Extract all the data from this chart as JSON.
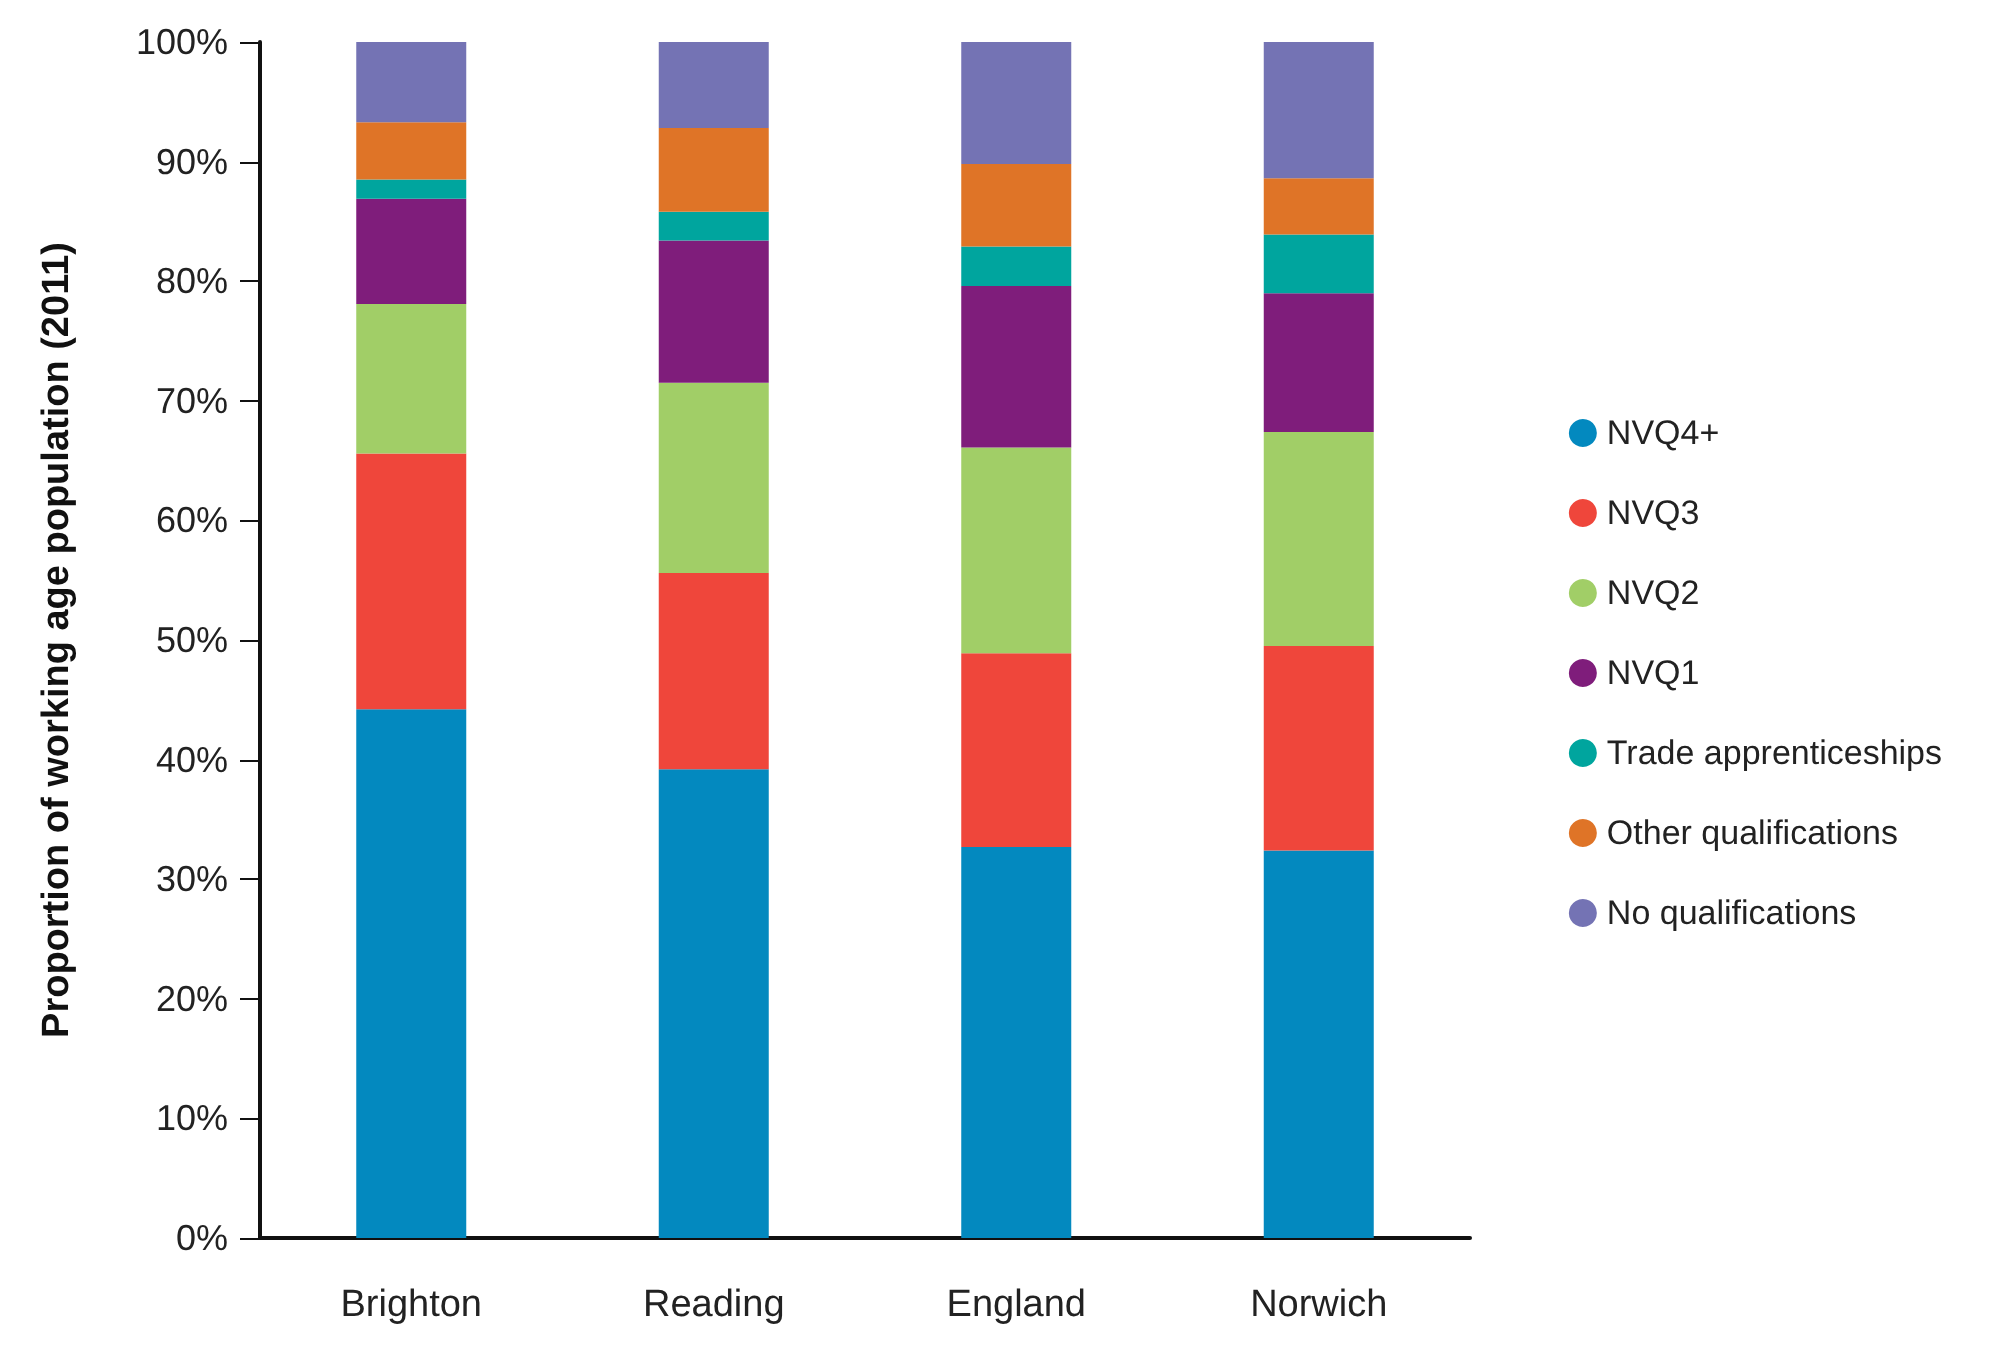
{
  "chart_data": {
    "type": "bar",
    "stacked": true,
    "ylabel": "Proportion of working age population (2011)",
    "categories": [
      "Brighton",
      "Reading",
      "England",
      "Norwich"
    ],
    "series": [
      {
        "name": "NVQ4+",
        "color": "#0389bf",
        "values": [
          44.2,
          39.2,
          32.7,
          32.4
        ]
      },
      {
        "name": "NVQ3",
        "color": "#ef463b",
        "values": [
          21.4,
          16.4,
          16.2,
          17.1
        ]
      },
      {
        "name": "NVQ2",
        "color": "#a1ce67",
        "values": [
          12.5,
          15.9,
          17.2,
          17.9
        ]
      },
      {
        "name": "NVQ1",
        "color": "#7f1d7b",
        "values": [
          8.8,
          11.9,
          13.5,
          11.6
        ]
      },
      {
        "name": "Trade apprenticeships",
        "color": "#00a59e",
        "values": [
          1.6,
          2.4,
          3.3,
          4.9
        ]
      },
      {
        "name": "Other qualifications",
        "color": "#df7427",
        "values": [
          4.8,
          7.0,
          6.9,
          4.7
        ]
      },
      {
        "name": "No qualifications",
        "color": "#7473b4",
        "values": [
          6.7,
          7.2,
          10.2,
          11.4
        ]
      }
    ],
    "ylim": [
      0,
      100
    ],
    "yticks": [
      {
        "value": 0,
        "label": "0%"
      },
      {
        "value": 10,
        "label": "10%"
      },
      {
        "value": 20,
        "label": "20%"
      },
      {
        "value": 30,
        "label": "30%"
      },
      {
        "value": 40,
        "label": "40%"
      },
      {
        "value": 50,
        "label": "50%"
      },
      {
        "value": 60,
        "label": "60%"
      },
      {
        "value": 70,
        "label": "70%"
      },
      {
        "value": 80,
        "label": "80%"
      },
      {
        "value": 90,
        "label": "90%"
      },
      {
        "value": 100,
        "label": "100%"
      }
    ],
    "grid": false,
    "legend": "right",
    "marker": "circle"
  }
}
